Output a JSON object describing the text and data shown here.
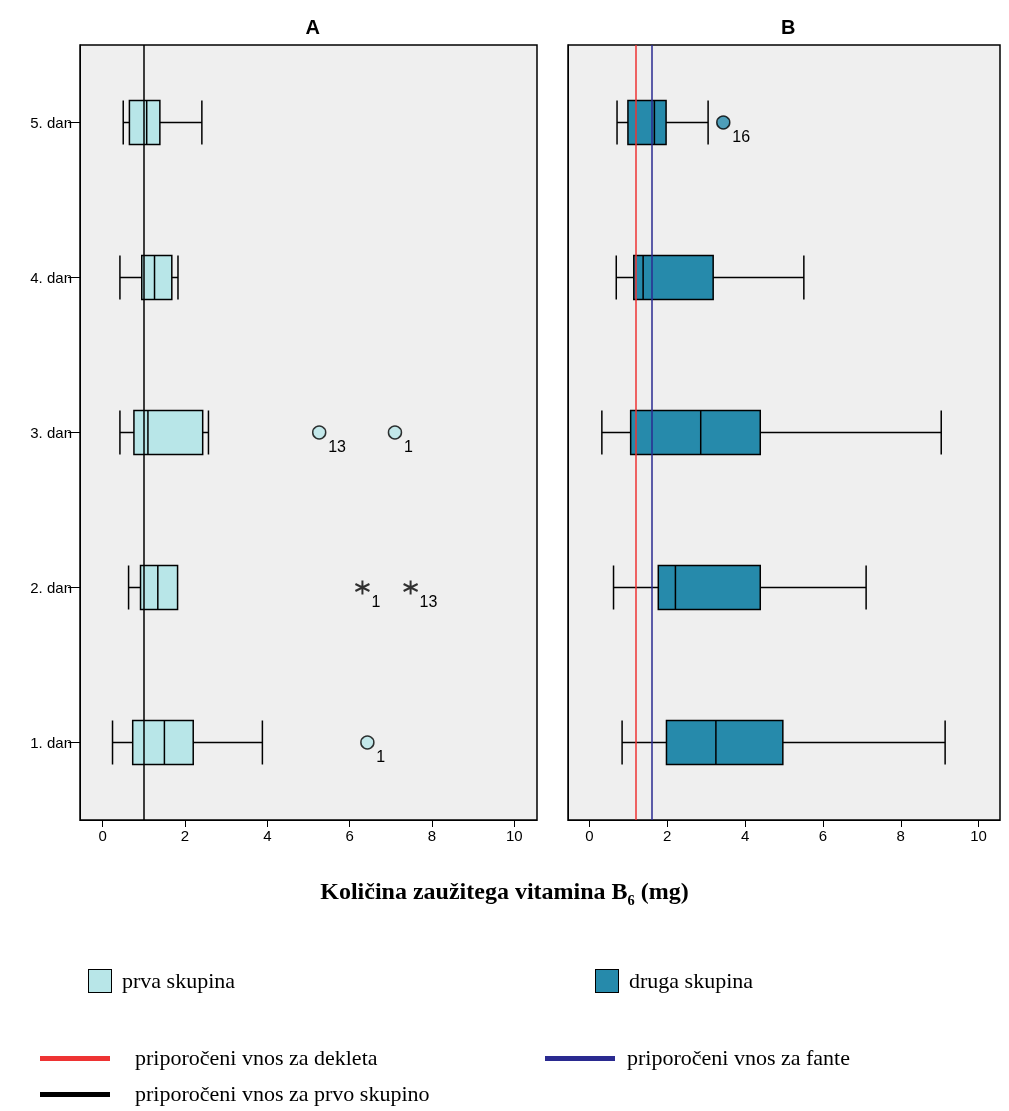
{
  "chart_data": [
    {
      "type": "box",
      "title": "A",
      "orientation": "horizontal",
      "xlabel": "Količina zaužitega vitamina B$_{6}$ (mg)",
      "categories": [
        "5. dan",
        "4. dan",
        "3. dan",
        "2. dan",
        "1. dan"
      ],
      "xlim": [
        -0.55,
        10.55
      ],
      "xticks": [
        0,
        2,
        4,
        6,
        8,
        10
      ],
      "marker": "circle",
      "legend": "bottom",
      "series": [
        {
          "name": "prva skupina",
          "color": "#b8e6e8",
          "boxes": [
            {
              "low": 0.5,
              "q1": 0.65,
              "median": 1.07,
              "q3": 1.39,
              "high": 2.41
            },
            {
              "low": 0.42,
              "q1": 0.95,
              "median": 1.26,
              "q3": 1.68,
              "high": 1.83
            },
            {
              "low": 0.42,
              "q1": 0.76,
              "median": 1.1,
              "q3": 2.43,
              "high": 2.57,
              "outliers": [
                5.26,
                7.1
              ]
            },
            {
              "low": 0.63,
              "q1": 0.92,
              "median": 1.34,
              "q3": 1.82,
              "high": 1.82
            },
            {
              "low": 0.24,
              "q1": 0.73,
              "median": 1.5,
              "q3": 2.2,
              "high": 3.88,
              "outliers": [
                6.43
              ]
            }
          ]
        },
        {
          "type": "scatter",
          "marker": "cross",
          "color": "#000000",
          "x": [
            "2. dan",
            "2. dan"
          ],
          "values": [
            6.31,
            7.48
          ]
        }
      ],
      "ref_lines": [
        {
          "axis": "x",
          "value": 1,
          "label": "priporočeni vnos za prvo skupino",
          "color": "#000000"
        }
      ],
      "annotations": [
        "13",
        "1",
        "1",
        "1",
        "13"
      ]
    },
    {
      "type": "box",
      "title": "B",
      "orientation": "horizontal",
      "categories": [
        null,
        null,
        null,
        null,
        null
      ],
      "xlim": [
        -0.55,
        10.55
      ],
      "xticks": [
        0,
        2,
        4,
        6,
        8,
        10
      ],
      "tick_labels": "x",
      "marker": "circle",
      "legend": "bottom",
      "series": [
        {
          "name": "druga skupina",
          "color": "#268aab",
          "boxes": [
            {
              "low": 0.71,
              "q1": 0.99,
              "median": 1.67,
              "q3": 1.97,
              "high": 3.05,
              "outliers": [
                3.44
              ]
            },
            {
              "low": 0.69,
              "q1": 1.14,
              "median": 1.38,
              "q3": 3.18,
              "high": 5.51
            },
            {
              "low": 0.32,
              "q1": 1.06,
              "median": 2.86,
              "q3": 4.39,
              "high": 9.04
            },
            {
              "low": 0.62,
              "q1": 1.77,
              "median": 2.21,
              "q3": 4.39,
              "high": 7.11
            },
            {
              "low": 0.84,
              "q1": 1.98,
              "median": 3.25,
              "q3": 4.97,
              "high": 9.14
            }
          ]
        }
      ],
      "ref_lines": [
        {
          "axis": "x",
          "value": 1.2,
          "label": "priporočeni vnos za dekleta",
          "color": "#ee3333"
        },
        {
          "axis": "x",
          "value": 1.6,
          "label": "priporočeni vnos za fante",
          "color": "#2a2a90"
        }
      ],
      "annotations": [
        "16"
      ]
    }
  ]
}
